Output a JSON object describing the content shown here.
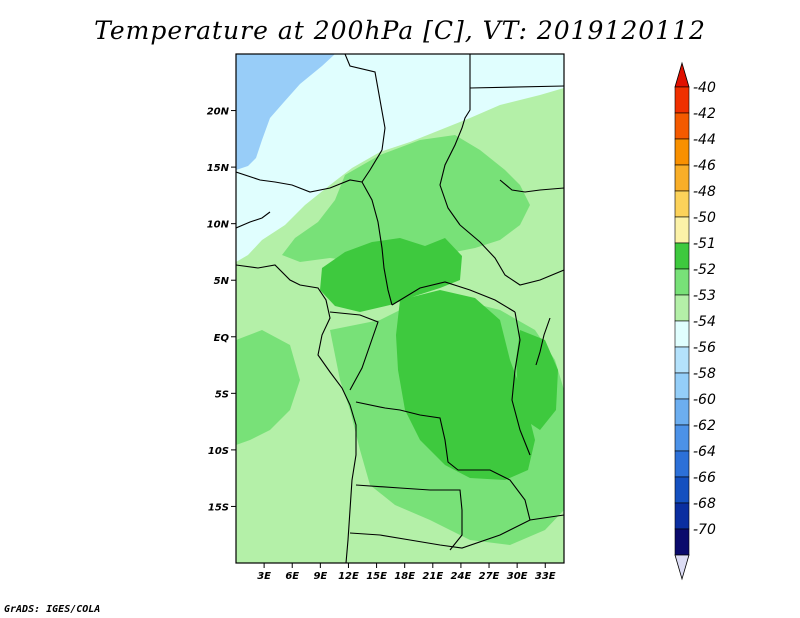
{
  "title": "Temperature at 200hPa [C], VT: 2019120112",
  "footer": "GrADS: IGES/COLA",
  "map": {
    "lon_range": [
      0,
      35
    ],
    "lat_range": [
      -20,
      25
    ],
    "lon_ticks": [
      {
        "value": 3,
        "label": "3E"
      },
      {
        "value": 6,
        "label": "6E"
      },
      {
        "value": 9,
        "label": "9E"
      },
      {
        "value": 12,
        "label": "12E"
      },
      {
        "value": 15,
        "label": "15E"
      },
      {
        "value": 18,
        "label": "18E"
      },
      {
        "value": 21,
        "label": "21E"
      },
      {
        "value": 24,
        "label": "24E"
      },
      {
        "value": 27,
        "label": "27E"
      },
      {
        "value": 30,
        "label": "30E"
      },
      {
        "value": 33,
        "label": "33E"
      }
    ],
    "lat_ticks": [
      {
        "value": 20,
        "label": "20N"
      },
      {
        "value": 15,
        "label": "15N"
      },
      {
        "value": 10,
        "label": "10N"
      },
      {
        "value": 5,
        "label": "5N"
      },
      {
        "value": 0,
        "label": "EQ"
      },
      {
        "value": -5,
        "label": "5S"
      },
      {
        "value": -10,
        "label": "10S"
      },
      {
        "value": -15,
        "label": "15S"
      }
    ],
    "field_colors": {
      "t_m51": "#3ec93e",
      "t_m52": "#78e178",
      "t_m53": "#b4f0a8",
      "t_m54": "#e0fefe",
      "t_m56": "#98cdf8"
    },
    "border_color": "#000000"
  },
  "colorbar": {
    "top_color": "#e01000",
    "bottom_color": "#dcdcf4",
    "bins": [
      {
        "label": "-40",
        "color": "#f03000"
      },
      {
        "label": "-42",
        "color": "#f45a00"
      },
      {
        "label": "-44",
        "color": "#f89000"
      },
      {
        "label": "-46",
        "color": "#f8ae28"
      },
      {
        "label": "-48",
        "color": "#fcd25a"
      },
      {
        "label": "-50",
        "color": "#fcf2a8"
      },
      {
        "label": "-51",
        "color": "#3ec93e"
      },
      {
        "label": "-52",
        "color": "#78e178"
      },
      {
        "label": "-53",
        "color": "#b4f0a8"
      },
      {
        "label": "-54",
        "color": "#e0fefe"
      },
      {
        "label": "-56",
        "color": "#b4e2fc"
      },
      {
        "label": "-58",
        "color": "#94cef8"
      },
      {
        "label": "-60",
        "color": "#6caef0"
      },
      {
        "label": "-62",
        "color": "#4c92e8"
      },
      {
        "label": "-64",
        "color": "#2c70d8"
      },
      {
        "label": "-66",
        "color": "#1450c0"
      },
      {
        "label": "-68",
        "color": "#0a2ea0"
      },
      {
        "label": "-70",
        "color": "#0a0a6c"
      }
    ]
  }
}
